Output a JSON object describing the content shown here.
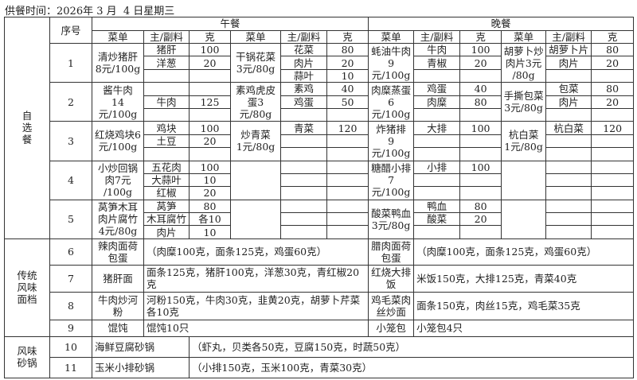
{
  "title": "供餐时间：2026年 3 月  4 日星期三",
  "header": {
    "seq": "序号",
    "lunch": "午餐",
    "dinner": "晚餐",
    "dish": "菜单",
    "ingredient": "主/副料",
    "grams": "克"
  },
  "selection": {
    "category": "自\n选\n餐",
    "items": [
      {
        "no": "1",
        "lunch": [
          {
            "name": "清炒猪肝\n8元/100g",
            "ing": [
              [
                "猪肝",
                "100"
              ],
              [
                "洋葱",
                "20"
              ],
              [
                "",
                ""
              ]
            ]
          },
          {
            "name": "干锅花菜\n3元/80g",
            "ing": [
              [
                "花菜",
                "80"
              ],
              [
                "肉片",
                "20"
              ],
              [
                "蒜叶",
                "10"
              ]
            ]
          }
        ],
        "dinner": [
          {
            "name": "蚝油牛肉\n9元/100g",
            "ing": [
              [
                "牛肉",
                "100"
              ],
              [
                "青椒",
                "20"
              ],
              [
                "",
                ""
              ]
            ]
          },
          {
            "name": "胡萝卜炒\n肉片3元\n/80g",
            "ing": [
              [
                "胡萝卜片",
                "80"
              ],
              [
                "肉片",
                "20"
              ],
              [
                "",
                ""
              ]
            ]
          }
        ]
      },
      {
        "no": "2",
        "lunch": [
          {
            "name": "酱牛肉\n14元/100g",
            "ing": [
              [
                "",
                ""
              ],
              [
                "牛肉",
                "125"
              ],
              [
                "",
                ""
              ]
            ]
          },
          {
            "name": "素鸡虎皮\n蛋3元/80g",
            "ing": [
              [
                "素鸡",
                "40"
              ],
              [
                "鸡蛋",
                "50"
              ],
              [
                "",
                ""
              ]
            ]
          }
        ],
        "dinner": [
          {
            "name": "肉糜蒸蛋\n6元/100g",
            "ing": [
              [
                "鸡蛋",
                "40"
              ],
              [
                "肉糜",
                "80"
              ],
              [
                "",
                ""
              ]
            ]
          },
          {
            "name": "手撕包菜\n3元/80g",
            "ing": [
              [
                "包菜",
                "80"
              ],
              [
                "肉片",
                "20"
              ],
              [
                "",
                ""
              ]
            ]
          }
        ]
      },
      {
        "no": "3",
        "lunch": [
          {
            "name": "红烧鸡块6\n元/100g",
            "ing": [
              [
                "鸡块",
                "100"
              ],
              [
                "土豆",
                "20"
              ],
              [
                "",
                ""
              ]
            ]
          },
          {
            "name": "炒青菜\n1元/80g",
            "ing": [
              [
                "青菜",
                "120"
              ],
              [
                "",
                ""
              ],
              [
                "",
                ""
              ]
            ]
          }
        ],
        "dinner": [
          {
            "name": "炸猪排\n9元/100g",
            "ing": [
              [
                "大排",
                "100"
              ],
              [
                "",
                ""
              ],
              [
                "",
                ""
              ]
            ]
          },
          {
            "name": "杭白菜\n1元/80g",
            "ing": [
              [
                "杭白菜",
                "120"
              ],
              [
                "",
                ""
              ],
              [
                "",
                ""
              ]
            ]
          }
        ]
      },
      {
        "no": "4",
        "lunch": [
          {
            "name": "小炒回锅\n肉7元\n/100g",
            "ing": [
              [
                "五花肉",
                "100"
              ],
              [
                "大蒜叶",
                "10"
              ],
              [
                "红椒",
                "20"
              ]
            ]
          },
          {
            "name": "",
            "ing": [
              [
                "",
                ""
              ],
              [
                "",
                ""
              ],
              [
                "",
                ""
              ]
            ]
          }
        ],
        "dinner": [
          {
            "name": "糖醋小排\n7元/100g",
            "ing": [
              [
                "小排",
                "100"
              ],
              [
                "",
                ""
              ],
              [
                "",
                ""
              ]
            ]
          },
          {
            "name": "",
            "ing": [
              [
                "",
                ""
              ],
              [
                "",
                ""
              ],
              [
                "",
                ""
              ]
            ]
          }
        ]
      },
      {
        "no": "5",
        "lunch": [
          {
            "name": "莴笋木耳\n肉片腐竹\n4元/80g",
            "ing": [
              [
                "莴笋",
                "80"
              ],
              [
                "木耳腐竹",
                "各10"
              ],
              [
                "肉片",
                "10"
              ]
            ]
          },
          {
            "name": "",
            "ing": [
              [
                "",
                ""
              ],
              [
                "",
                ""
              ],
              [
                "",
                ""
              ]
            ]
          }
        ],
        "dinner": [
          {
            "name": "酸菜鸭血\n3元/80g",
            "ing": [
              [
                "鸭血",
                "80"
              ],
              [
                "酸菜",
                "20"
              ],
              [
                "",
                ""
              ]
            ]
          },
          {
            "name": "",
            "ing": [
              [
                "",
                ""
              ],
              [
                "",
                ""
              ],
              [
                "",
                ""
              ]
            ]
          }
        ]
      }
    ]
  },
  "noodles": {
    "category": "传统\n风味\n面档",
    "items": [
      {
        "no": "6",
        "lunch": {
          "name": "辣肉面荷\n包蛋",
          "desc": "（肉糜100克，面条125克，鸡蛋60克）"
        },
        "dinner": {
          "name": "腊肉面荷\n包蛋",
          "desc": "（肉糜100克，面条125克，鸡蛋60克）"
        }
      },
      {
        "no": "7",
        "lunch": {
          "name": "猪肝面",
          "desc": "面条125克，猪肝100克，洋葱30克，青红椒20克"
        },
        "dinner": {
          "name": "红烧大排\n饭",
          "desc": "米饭150克，大排125克，青菜40克"
        }
      },
      {
        "no": "8",
        "lunch": {
          "name": "牛肉炒河\n粉",
          "desc": "河粉150克，牛肉30克，韭黄20克，胡萝卜芹菜各10克"
        },
        "dinner": {
          "name": "鸡毛菜肉\n丝炒面",
          "desc": "面条150克，肉丝15克，鸡毛菜35克"
        }
      },
      {
        "no": "9",
        "lunch": {
          "name": "馄饨",
          "desc": "馄饨10只"
        },
        "dinner": {
          "name": "小笼包",
          "desc": "小笼包4只"
        }
      }
    ]
  },
  "claypot": {
    "category": "风味\n砂锅",
    "items": [
      {
        "no": "10",
        "name": "海鲜豆腐砂锅",
        "desc": "（虾丸，贝类各50克，豆腐150克，时蔬50克）"
      },
      {
        "no": "11",
        "name": "玉米小排砂锅",
        "desc": "（小排150克，玉米100克，青菜30克）"
      }
    ]
  }
}
